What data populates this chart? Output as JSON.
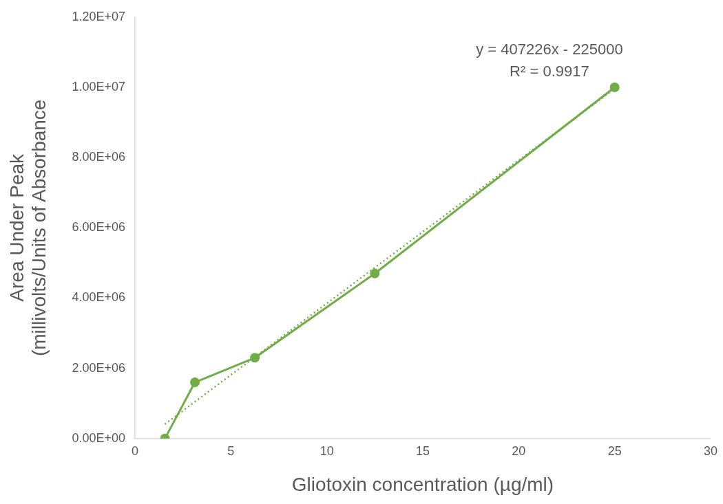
{
  "chart_data": {
    "type": "line",
    "xlabel": "Gliotoxin concentration (µg/ml)",
    "ylabel": "Area Under Peak\n(millivolts/Units of Absorbance",
    "x": [
      1.5625,
      3.125,
      6.25,
      12.5,
      25
    ],
    "series": [
      {
        "color": "#70ad47",
        "values": [
          0,
          1600000,
          2300000,
          4700000,
          10000000
        ],
        "marker": "circle",
        "line_style": "solid"
      },
      {
        "type": "line",
        "color": "#70ad47",
        "x": [
          1.5625,
          25
        ],
        "values": [
          410000,
          9960000
        ],
        "marker": "none",
        "line_style": "dotted"
      }
    ],
    "annotations": [
      "y = 407226x - 225000",
      "R² = 0.9917"
    ],
    "xlim": [
      0,
      30
    ],
    "xticks": [
      0,
      5,
      10,
      15,
      20,
      25,
      30
    ],
    "ylim": [
      0,
      12000000
    ],
    "yticks": [
      {
        "value": 0,
        "label": "0.00E+00"
      },
      {
        "value": 2000000,
        "label": "2.00E+06"
      },
      {
        "value": 4000000,
        "label": "4.00E+06"
      },
      {
        "value": 6000000,
        "label": "6.00E+06"
      },
      {
        "value": 8000000,
        "label": "8.00E+06"
      },
      {
        "value": 10000000,
        "label": "1.00E+07"
      },
      {
        "value": 12000000,
        "label": "1.20E+07"
      }
    ],
    "grid": false,
    "legend": false
  }
}
